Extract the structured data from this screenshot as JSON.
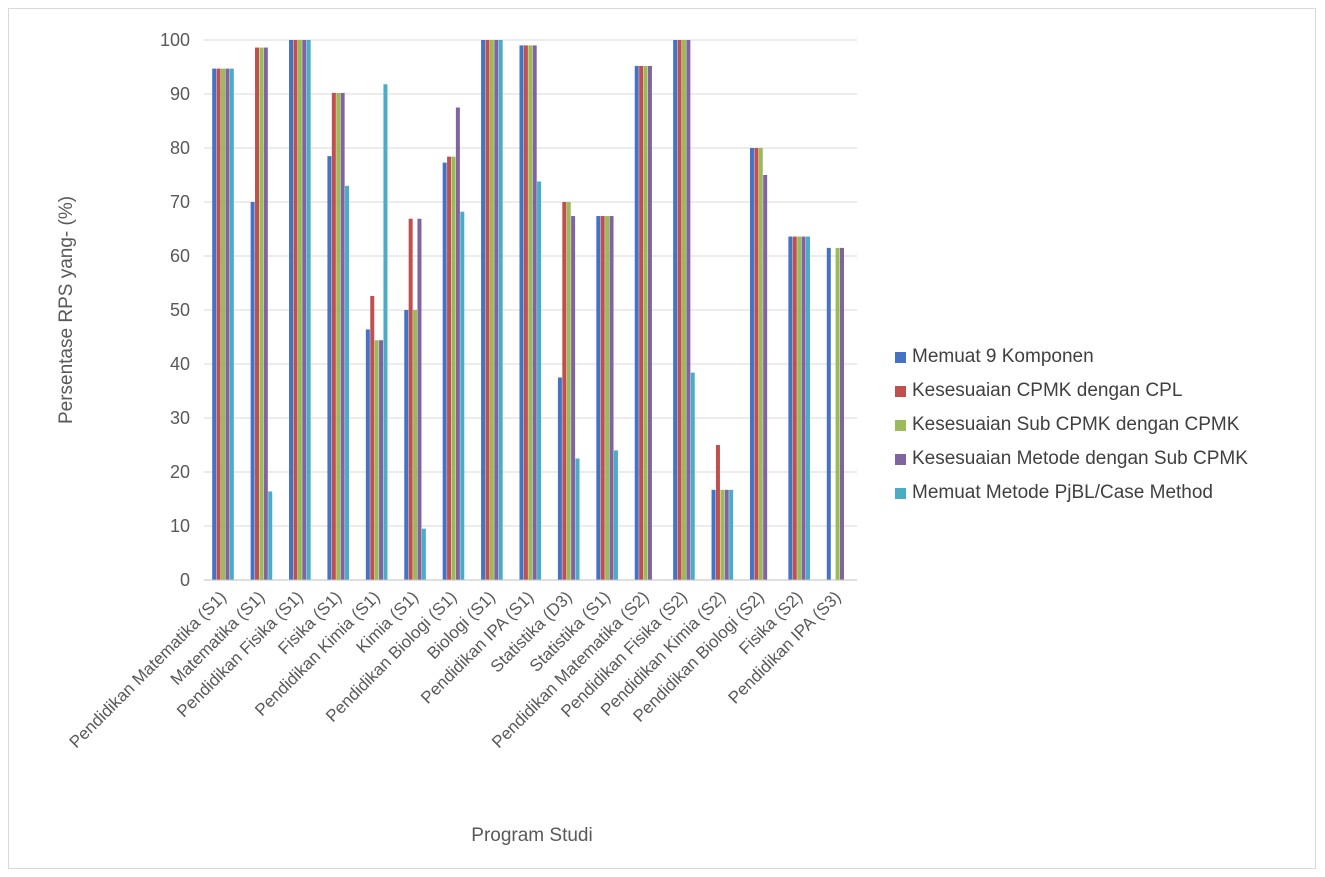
{
  "chart_data": {
    "type": "bar",
    "title": "",
    "xlabel": "Program Studi",
    "ylabel": "Persentase RPS yang- (%)",
    "ylim": [
      0,
      100
    ],
    "yticks": [
      0,
      10,
      20,
      30,
      40,
      50,
      60,
      70,
      80,
      90,
      100
    ],
    "grid": true,
    "legend_position": "right",
    "categories": [
      "Pendidikan Matematika (S1)",
      "Matematika (S1)",
      "Pendidikan Fisika (S1)",
      "Fisika (S1)",
      "Pendidikan Kimia (S1)",
      "Kimia (S1)",
      "Pendidikan Biologi (S1)",
      "Biologi (S1)",
      "Pendidikan IPA (S1)",
      "Statistika (D3)",
      "Statistika (S1)",
      "Pendidikan Matematika (S2)",
      "Pendidikan Fisika (S2)",
      "Pendidikan Kimia (S2)",
      "Pendidikan Biologi (S2)",
      "Fisika (S2)",
      "Pendidikan IPA (S3)"
    ],
    "series": [
      {
        "name": "Memuat 9 Komponen",
        "color": "#4472C4",
        "values": [
          94.7,
          70.0,
          100,
          78.5,
          46.4,
          50.0,
          77.3,
          100,
          99.0,
          37.5,
          67.4,
          95.2,
          100,
          16.7,
          80.0,
          63.6,
          61.5
        ]
      },
      {
        "name": "Kesesuaian CPMK dengan CPL",
        "color": "#C0504D",
        "values": [
          94.7,
          98.6,
          100,
          90.2,
          52.6,
          66.9,
          78.4,
          100,
          99.0,
          70.0,
          67.4,
          95.2,
          100,
          25.0,
          80.0,
          63.6,
          0
        ]
      },
      {
        "name": "Kesesuaian Sub CPMK dengan CPMK",
        "color": "#9BBB59",
        "values": [
          94.7,
          98.6,
          100,
          90.2,
          44.4,
          50.0,
          78.4,
          100,
          99.0,
          70.0,
          67.4,
          95.2,
          100,
          16.7,
          80.0,
          63.6,
          61.5
        ]
      },
      {
        "name": "Kesesuaian Metode dengan Sub CPMK",
        "color": "#8064A2",
        "values": [
          94.7,
          98.6,
          100,
          90.2,
          44.4,
          66.9,
          87.5,
          100,
          99.0,
          67.4,
          67.4,
          95.2,
          100,
          16.7,
          75.0,
          63.6,
          61.5
        ]
      },
      {
        "name": "Memuat Metode PjBL/Case Method",
        "color": "#4BACC6",
        "values": [
          94.7,
          16.4,
          100,
          73.0,
          91.8,
          9.5,
          68.2,
          100,
          73.8,
          22.5,
          24.0,
          0,
          38.4,
          16.7,
          0,
          63.6,
          0
        ]
      }
    ]
  }
}
